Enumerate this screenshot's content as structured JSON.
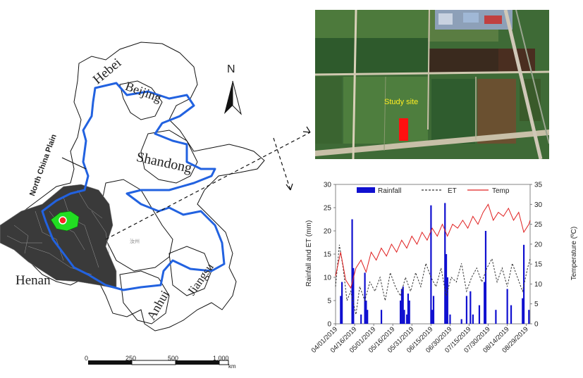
{
  "map": {
    "regions": [
      "Hebei",
      "Beijing",
      "Shandong",
      "Henan",
      "Anhui",
      "Jiangsu"
    ],
    "plain_label": "North China Plain",
    "north_label": "N",
    "small_text": "汝州",
    "scale": {
      "ticks": [
        "0",
        "250",
        "500",
        "1,000"
      ],
      "unit": "km"
    }
  },
  "satellite": {
    "label": "Study site"
  },
  "chart_data": {
    "type": "bar+line",
    "ylabel_left": "Rainfall and ET (mm)",
    "ylabel_right": "Temperature (ºC)",
    "ylim_left": [
      0,
      30
    ],
    "ylim_right": [
      0,
      35
    ],
    "yticks_left": [
      "0",
      "5",
      "10",
      "15",
      "20",
      "25",
      "30"
    ],
    "yticks_right": [
      "0",
      "5",
      "10",
      "15",
      "20",
      "25",
      "30",
      "35"
    ],
    "xticks": [
      "04/01/2019",
      "04/16/2019",
      "05/01/2019",
      "05/16/2019",
      "05/31/2019",
      "06/15/2019",
      "06/30/2019",
      "07/15/2019",
      "07/30/2019",
      "08/14/2019",
      "08/29/2019"
    ],
    "legend": [
      "Rainfall",
      "ET",
      "Temp"
    ],
    "colors": {
      "rainfall": "#1010d0",
      "et": "#333333",
      "temp": "#e02020"
    },
    "rainfall": [
      {
        "day": 4,
        "value": 6
      },
      {
        "day": 5,
        "value": 9
      },
      {
        "day": 13,
        "value": 22.5
      },
      {
        "day": 14,
        "value": 12
      },
      {
        "day": 20,
        "value": 2
      },
      {
        "day": 23,
        "value": 11
      },
      {
        "day": 24,
        "value": 5
      },
      {
        "day": 25,
        "value": 3
      },
      {
        "day": 36,
        "value": 3
      },
      {
        "day": 51,
        "value": 5
      },
      {
        "day": 52,
        "value": 7.5
      },
      {
        "day": 53,
        "value": 8
      },
      {
        "day": 54,
        "value": 3
      },
      {
        "day": 56,
        "value": 2
      },
      {
        "day": 57,
        "value": 6.5
      },
      {
        "day": 58,
        "value": 5
      },
      {
        "day": 75,
        "value": 25.5
      },
      {
        "day": 76,
        "value": 3
      },
      {
        "day": 77,
        "value": 6
      },
      {
        "day": 86,
        "value": 26
      },
      {
        "day": 87,
        "value": 15
      },
      {
        "day": 88,
        "value": 10
      },
      {
        "day": 90,
        "value": 2
      },
      {
        "day": 99,
        "value": 1
      },
      {
        "day": 103,
        "value": 6
      },
      {
        "day": 106,
        "value": 7
      },
      {
        "day": 108,
        "value": 2
      },
      {
        "day": 113,
        "value": 4
      },
      {
        "day": 117,
        "value": 9
      },
      {
        "day": 118,
        "value": 20
      },
      {
        "day": 126,
        "value": 3
      },
      {
        "day": 135,
        "value": 7.5
      },
      {
        "day": 138,
        "value": 4
      },
      {
        "day": 147,
        "value": 5.5
      },
      {
        "day": 148,
        "value": 17
      },
      {
        "day": 152,
        "value": 3
      }
    ],
    "et": [
      {
        "day": 0,
        "value": 8
      },
      {
        "day": 3,
        "value": 17
      },
      {
        "day": 6,
        "value": 12
      },
      {
        "day": 9,
        "value": 5
      },
      {
        "day": 12,
        "value": 7
      },
      {
        "day": 16,
        "value": 2
      },
      {
        "day": 19,
        "value": 8
      },
      {
        "day": 23,
        "value": 5
      },
      {
        "day": 27,
        "value": 9
      },
      {
        "day": 31,
        "value": 7
      },
      {
        "day": 35,
        "value": 10
      },
      {
        "day": 39,
        "value": 5
      },
      {
        "day": 43,
        "value": 11
      },
      {
        "day": 47,
        "value": 8
      },
      {
        "day": 51,
        "value": 6
      },
      {
        "day": 55,
        "value": 10
      },
      {
        "day": 59,
        "value": 7
      },
      {
        "day": 63,
        "value": 11
      },
      {
        "day": 67,
        "value": 8
      },
      {
        "day": 71,
        "value": 13
      },
      {
        "day": 75,
        "value": 10
      },
      {
        "day": 79,
        "value": 8
      },
      {
        "day": 83,
        "value": 12
      },
      {
        "day": 87,
        "value": 6
      },
      {
        "day": 91,
        "value": 10
      },
      {
        "day": 95,
        "value": 9
      },
      {
        "day": 99,
        "value": 13
      },
      {
        "day": 103,
        "value": 7
      },
      {
        "day": 107,
        "value": 10
      },
      {
        "day": 111,
        "value": 12
      },
      {
        "day": 115,
        "value": 9
      },
      {
        "day": 119,
        "value": 12
      },
      {
        "day": 123,
        "value": 14
      },
      {
        "day": 127,
        "value": 9
      },
      {
        "day": 131,
        "value": 12
      },
      {
        "day": 135,
        "value": 8
      },
      {
        "day": 139,
        "value": 13
      },
      {
        "day": 143,
        "value": 10
      },
      {
        "day": 147,
        "value": 7
      },
      {
        "day": 151,
        "value": 12
      },
      {
        "day": 153,
        "value": 14
      }
    ],
    "temp": [
      {
        "day": 0,
        "value": 12
      },
      {
        "day": 4,
        "value": 18
      },
      {
        "day": 8,
        "value": 11
      },
      {
        "day": 12,
        "value": 9
      },
      {
        "day": 16,
        "value": 14
      },
      {
        "day": 20,
        "value": 16
      },
      {
        "day": 24,
        "value": 13
      },
      {
        "day": 28,
        "value": 18
      },
      {
        "day": 32,
        "value": 16
      },
      {
        "day": 36,
        "value": 19
      },
      {
        "day": 40,
        "value": 17
      },
      {
        "day": 44,
        "value": 20
      },
      {
        "day": 48,
        "value": 18
      },
      {
        "day": 52,
        "value": 21
      },
      {
        "day": 56,
        "value": 19
      },
      {
        "day": 60,
        "value": 22
      },
      {
        "day": 64,
        "value": 20
      },
      {
        "day": 68,
        "value": 23
      },
      {
        "day": 72,
        "value": 21
      },
      {
        "day": 76,
        "value": 24
      },
      {
        "day": 80,
        "value": 22
      },
      {
        "day": 84,
        "value": 25
      },
      {
        "day": 88,
        "value": 22
      },
      {
        "day": 92,
        "value": 25
      },
      {
        "day": 96,
        "value": 24
      },
      {
        "day": 100,
        "value": 26
      },
      {
        "day": 104,
        "value": 24
      },
      {
        "day": 108,
        "value": 27
      },
      {
        "day": 112,
        "value": 25
      },
      {
        "day": 116,
        "value": 28
      },
      {
        "day": 120,
        "value": 30
      },
      {
        "day": 124,
        "value": 26
      },
      {
        "day": 128,
        "value": 28
      },
      {
        "day": 132,
        "value": 27
      },
      {
        "day": 136,
        "value": 29
      },
      {
        "day": 140,
        "value": 26
      },
      {
        "day": 144,
        "value": 28
      },
      {
        "day": 148,
        "value": 23
      },
      {
        "day": 152,
        "value": 25
      },
      {
        "day": 153,
        "value": 26
      }
    ]
  }
}
